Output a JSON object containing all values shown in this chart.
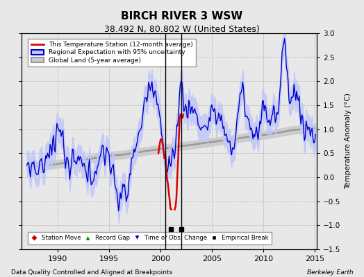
{
  "title": "BIRCH RIVER 3 WSW",
  "subtitle": "38.492 N, 80.802 W (United States)",
  "ylabel": "Temperature Anomaly (°C)",
  "xlabel_left": "Data Quality Controlled and Aligned at Breakpoints",
  "xlabel_right": "Berkeley Earth",
  "ylim": [
    -1.5,
    3.0
  ],
  "xlim": [
    1986.5,
    2015.2
  ],
  "yticks": [
    -1.5,
    -1.0,
    -0.5,
    0.0,
    0.5,
    1.0,
    1.5,
    2.0,
    2.5,
    3.0
  ],
  "xticks": [
    1990,
    1995,
    2000,
    2005,
    2010,
    2015
  ],
  "bg_color": "#e8e8e8",
  "plot_bg_color": "#e8e8e8",
  "grid_color": "#bbbbbb",
  "station_line_color": "#dd0000",
  "regional_line_color": "#0000cc",
  "regional_fill_color": "#c0c8f8",
  "global_line_color": "#999999",
  "global_fill_color": "#cccccc",
  "legend_entries": [
    {
      "label": "This Temperature Station (12-month average)",
      "color": "#dd0000"
    },
    {
      "label": "Regional Expectation with 95% uncertainty",
      "color": "#0000cc",
      "fill": "#c0c8f8"
    },
    {
      "label": "Global Land (5-year average)",
      "color": "#999999",
      "fill": "#cccccc"
    }
  ],
  "marker_legend": [
    {
      "label": "Station Move",
      "color": "#cc0000",
      "marker": "D"
    },
    {
      "label": "Record Gap",
      "color": "#008800",
      "marker": "^"
    },
    {
      "label": "Time of Obs. Change",
      "color": "#0000cc",
      "marker": "v"
    },
    {
      "label": "Empirical Break",
      "color": "#000000",
      "marker": "s"
    }
  ],
  "vertical_lines": [
    2000.5,
    2002.0
  ],
  "empirical_breaks": [
    2001.0,
    2002.0
  ],
  "station_visible_start": 1999.8,
  "station_visible_end": 2002.2
}
